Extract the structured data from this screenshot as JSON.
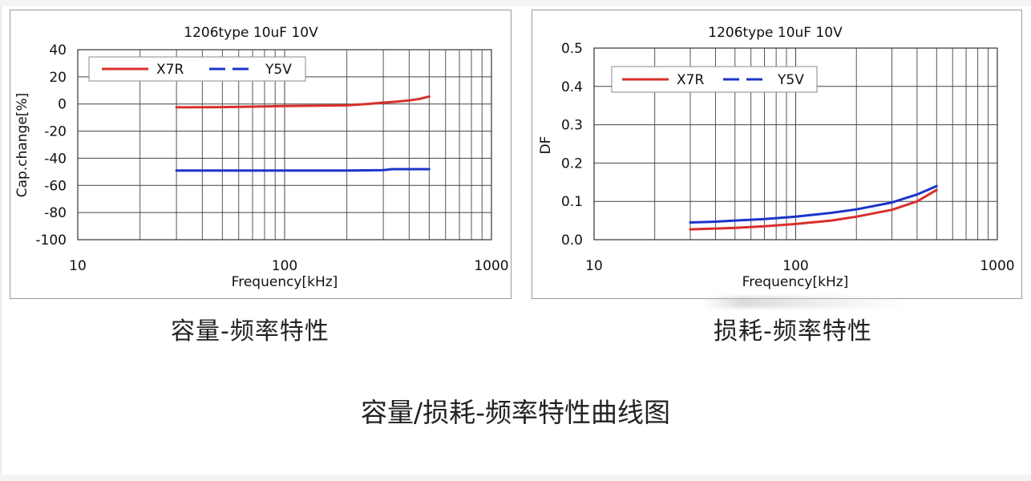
{
  "chart_data": [
    {
      "type": "line",
      "title": "1206type  10uF  10V",
      "xlabel": "Frequency[kHz]",
      "ylabel": "Cap.change[%]",
      "xscale": "log",
      "xlim": [
        10,
        1000
      ],
      "ylim": [
        -100,
        40
      ],
      "xticks": [
        10,
        100,
        1000
      ],
      "xtick_labels": [
        "10",
        "100",
        "1000"
      ],
      "yticks": [
        40,
        20,
        0,
        -20,
        -40,
        -60,
        -80,
        -100
      ],
      "ytick_labels": [
        "40",
        "20",
        "0",
        "-20",
        "-40",
        "-60",
        "-80",
        "-100"
      ],
      "grid": true,
      "legend": "top-left",
      "series": [
        {
          "name": "X7R",
          "color": "#d9302b",
          "dash": "solid",
          "x": [
            30,
            50,
            80,
            100,
            150,
            200,
            250,
            300,
            350,
            400,
            450,
            500
          ],
          "y": [
            -2.5,
            -2.3,
            -1.8,
            -1.5,
            -1.2,
            -1,
            0,
            1,
            1.8,
            2.6,
            3.8,
            5.5
          ]
        },
        {
          "name": "Y5V",
          "color": "#1b35c9",
          "dash": "dashed",
          "x": [
            30,
            50,
            100,
            200,
            300,
            330,
            400,
            500
          ],
          "y": [
            -49,
            -49,
            -49,
            -49,
            -48.8,
            -48,
            -48,
            -48
          ]
        }
      ]
    },
    {
      "type": "line",
      "title": "1206type  10uF  10V",
      "xlabel": "Frequency[kHz]",
      "ylabel": "DF",
      "xscale": "log",
      "xlim": [
        10,
        1000
      ],
      "ylim": [
        0,
        0.5
      ],
      "xticks": [
        10,
        100,
        1000
      ],
      "xtick_labels": [
        "10",
        "100",
        "1000"
      ],
      "yticks": [
        0.5,
        0.4,
        0.3,
        0.2,
        0.1,
        0.0
      ],
      "ytick_labels": [
        "0.5",
        "0.4",
        "0.3",
        "0.2",
        "0.1",
        "0.0"
      ],
      "grid": true,
      "legend": "top-left",
      "series": [
        {
          "name": "X7R",
          "color": "#d9302b",
          "dash": "solid",
          "x": [
            30,
            40,
            50,
            70,
            100,
            150,
            200,
            300,
            400,
            500
          ],
          "y": [
            0.027,
            0.029,
            0.031,
            0.035,
            0.041,
            0.05,
            0.06,
            0.078,
            0.1,
            0.13
          ]
        },
        {
          "name": "Y5V",
          "color": "#1b35c9",
          "dash": "dashed",
          "x": [
            30,
            40,
            50,
            70,
            100,
            150,
            200,
            300,
            400,
            500
          ],
          "y": [
            0.045,
            0.047,
            0.05,
            0.054,
            0.06,
            0.07,
            0.079,
            0.097,
            0.118,
            0.14
          ]
        }
      ]
    }
  ],
  "captions": {
    "left": "容量-频率特性",
    "right": "损耗-频率特性",
    "figure": "容量/损耗-频率特性曲线图"
  }
}
